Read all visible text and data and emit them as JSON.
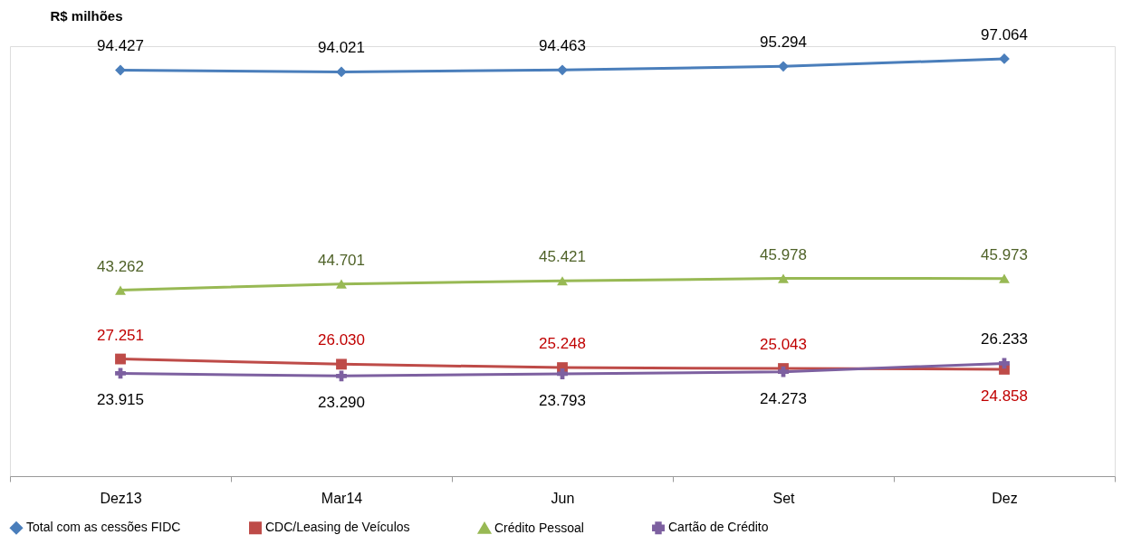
{
  "chart_data": {
    "type": "line",
    "ylabel": "R$ milhões",
    "categories": [
      "Dez13",
      "Mar14",
      "Jun",
      "Set",
      "Dez"
    ],
    "series": [
      {
        "name": "Total com as cessões FIDC",
        "color": "#4a7ebb",
        "marker": "diamond",
        "values": [
          94427,
          94021,
          94463,
          95294,
          97064
        ],
        "value_labels": [
          "94.427",
          "94.021",
          "94.463",
          "95.294",
          "97.064"
        ]
      },
      {
        "name": "CDC/Leasing de Veículos",
        "color": "#be4b48",
        "marker": "square",
        "values": [
          27251,
          26030,
          25248,
          25043,
          24858
        ],
        "value_labels": [
          "27.251",
          "26.030",
          "25.248",
          "25.043",
          "24.858"
        ]
      },
      {
        "name": "Crédito Pessoal",
        "color": "#98b954",
        "marker": "triangle",
        "values": [
          43262,
          44701,
          45421,
          45978,
          45973
        ],
        "value_labels": [
          "43.262",
          "44.701",
          "45.421",
          "45.978",
          "45.973"
        ]
      },
      {
        "name": "Cartão de Crédito",
        "color": "#7d60a0",
        "marker": "cross",
        "values": [
          23915,
          23290,
          23793,
          24273,
          26233
        ],
        "value_labels": [
          "23.915",
          "23.290",
          "23.793",
          "24.273",
          "26.233"
        ]
      }
    ],
    "ylim": [
      0,
      100000
    ],
    "tick_labels": "x",
    "grid": false,
    "legend": "bottom"
  }
}
